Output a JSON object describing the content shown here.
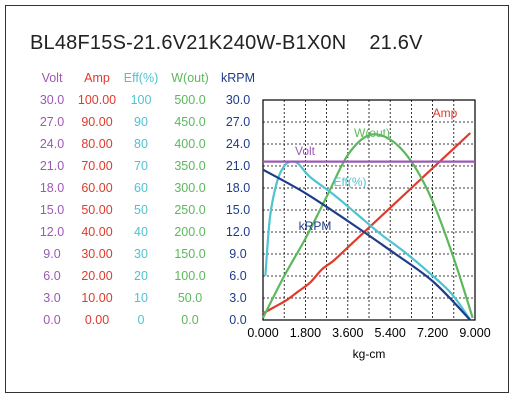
{
  "title": "BL48F15S-21.6V21K240W-B1X0N    21.6V",
  "chart_data": {
    "type": "line",
    "xlabel": "kg-cm",
    "xlim": [
      0,
      9.0
    ],
    "x_ticks": [
      "0.000",
      "1.800",
      "3.600",
      "5.400",
      "7.200",
      "9.000"
    ],
    "axes": [
      {
        "name": "Volt",
        "color": "#9b59b6",
        "ticks": [
          "0.0",
          "3.0",
          "6.0",
          "9.0",
          "12.0",
          "15.0",
          "18.0",
          "21.0",
          "24.0",
          "27.0",
          "30.0"
        ],
        "range": [
          0,
          30
        ]
      },
      {
        "name": "Amp",
        "color": "#e03a2c",
        "ticks": [
          "0.00",
          "10.00",
          "20.00",
          "30.00",
          "40.00",
          "50.00",
          "60.00",
          "70.00",
          "80.00",
          "90.00",
          "100.00"
        ],
        "range": [
          0,
          100
        ]
      },
      {
        "name": "Eff(%)",
        "color": "#4fc3d0",
        "ticks": [
          "0",
          "10",
          "20",
          "30",
          "40",
          "50",
          "60",
          "70",
          "80",
          "90",
          "100"
        ],
        "range": [
          0,
          100
        ]
      },
      {
        "name": "W(out)",
        "color": "#5cb85c",
        "ticks": [
          "0.0",
          "50.0",
          "100.0",
          "150.0",
          "200.0",
          "250.0",
          "300.0",
          "350.0",
          "400.0",
          "450.0",
          "500.0"
        ],
        "range": [
          0,
          500
        ]
      },
      {
        "name": "kRPM",
        "color": "#1f3c88",
        "ticks": [
          "0.0",
          "3.0",
          "6.0",
          "9.0",
          "12.0",
          "15.0",
          "18.0",
          "21.0",
          "24.0",
          "27.0",
          "30.0"
        ],
        "range": [
          0,
          30
        ]
      }
    ],
    "series": [
      {
        "name": "Amp",
        "axis": 1,
        "color": "#e03a2c",
        "x": [
          0,
          0.5,
          1.0,
          1.5,
          2.0,
          2.5,
          3.0,
          3.6,
          4.5,
          5.4,
          6.3,
          7.2,
          8.1,
          8.8
        ],
        "y": [
          3,
          6,
          9,
          13,
          17,
          23,
          27,
          33,
          42,
          51,
          60,
          69,
          78,
          85
        ]
      },
      {
        "name": "W(out)",
        "axis": 3,
        "color": "#5cb85c",
        "x": [
          0,
          0.9,
          1.8,
          2.7,
          3.6,
          4.5,
          5.4,
          6.3,
          7.2,
          8.1,
          8.9
        ],
        "y": [
          5,
          100,
          185,
          280,
          375,
          420,
          410,
          360,
          270,
          140,
          5
        ]
      },
      {
        "name": "Eff(%)",
        "axis": 2,
        "color": "#4fc3d0",
        "x": [
          0.1,
          0.3,
          0.6,
          0.9,
          1.2,
          1.5,
          2.0,
          3.0,
          4.0,
          5.0,
          6.0,
          7.0,
          8.0,
          8.8
        ],
        "y": [
          20,
          47,
          63,
          70,
          72,
          71,
          65,
          57,
          48,
          39,
          31,
          22,
          12,
          0
        ]
      },
      {
        "name": "kRPM",
        "axis": 4,
        "color": "#1f3c88",
        "x": [
          0,
          1.8,
          3.6,
          5.4,
          7.2,
          8.8
        ],
        "y": [
          20.5,
          17.3,
          13.5,
          9.5,
          5.3,
          0
        ]
      },
      {
        "name": "Volt",
        "axis": 0,
        "color": "#9b59b6",
        "x": [
          0,
          9.0
        ],
        "y": [
          21.6,
          21.6
        ]
      }
    ],
    "series_labels": [
      {
        "name": "Amp",
        "color": "#e03a2c"
      },
      {
        "name": "W(out)",
        "color": "#5cb85c"
      },
      {
        "name": "Volt",
        "color": "#9b59b6"
      },
      {
        "name": "Eff(%)",
        "color": "#4fc3d0"
      },
      {
        "name": "kRPM",
        "color": "#1f3c88"
      }
    ],
    "grid": true
  }
}
